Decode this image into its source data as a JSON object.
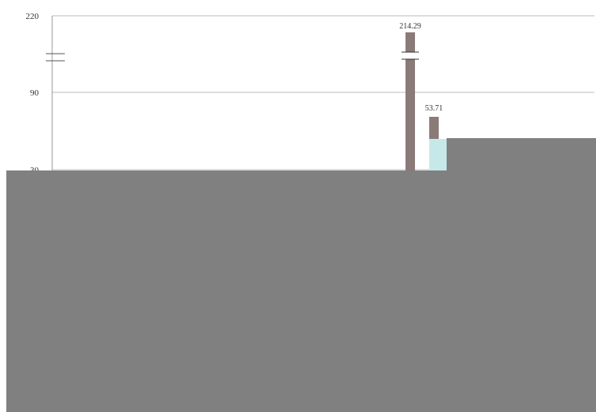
{
  "chart_data": {
    "type": "bar",
    "y_ticks": [
      "220",
      "90",
      "30"
    ],
    "data_labels": [
      "214.29",
      "53.71"
    ],
    "y_scale": "broken",
    "axis_break_between": [
      "220",
      "90"
    ],
    "series_colors": [
      "#8a7a78",
      "#c7e8e8"
    ],
    "grid": true,
    "legend": "none"
  },
  "colors": {
    "background": "#ffffff",
    "gridline": "#bbbbbb",
    "occluded_region": "#808080"
  }
}
